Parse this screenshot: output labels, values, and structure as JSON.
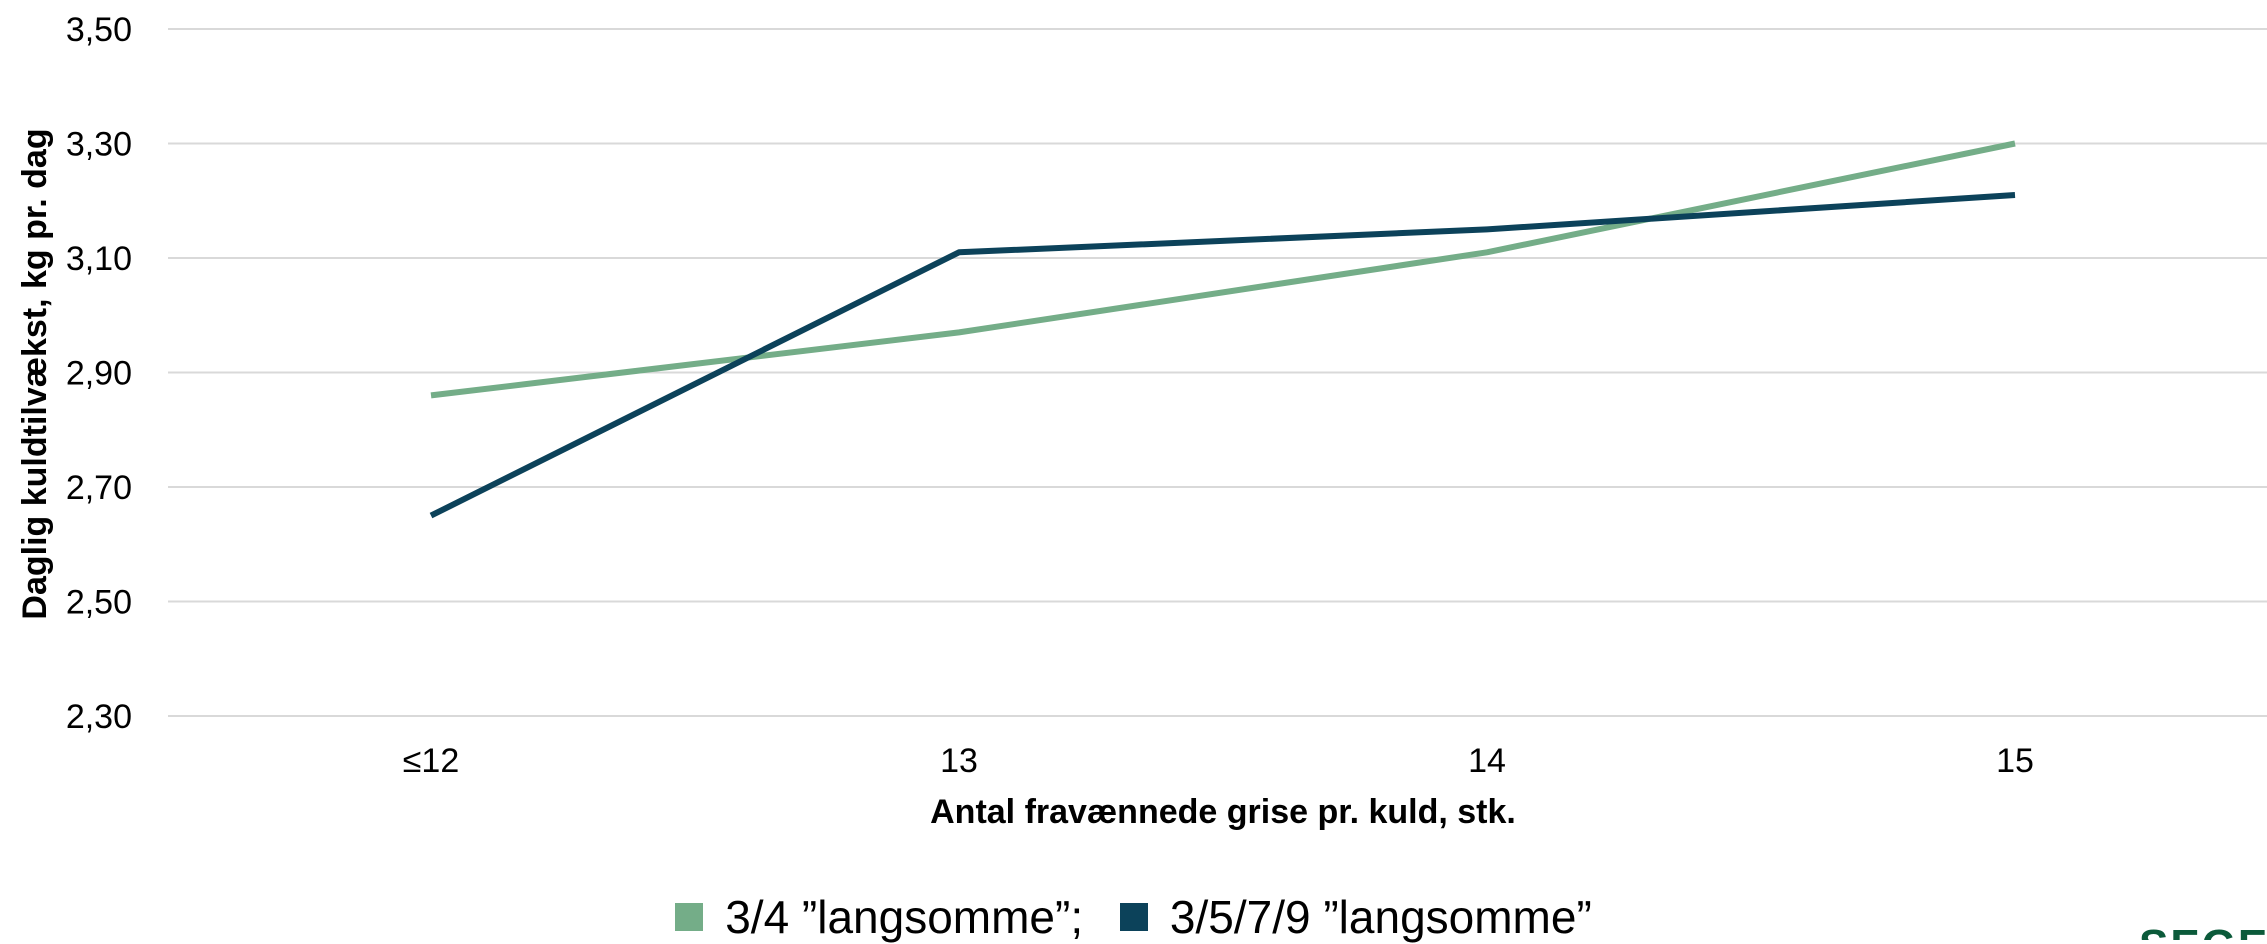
{
  "chart_data": {
    "type": "line",
    "categories": [
      "≤12",
      "13",
      "14",
      "15"
    ],
    "series": [
      {
        "name": "3/4 ”langsomme”;",
        "color": "#74ad88",
        "values": [
          2.86,
          2.97,
          3.11,
          3.3
        ]
      },
      {
        "name": "3/5/7/9 ”langsomme”",
        "color": "#0c425a",
        "values": [
          2.65,
          3.11,
          3.15,
          3.21
        ]
      }
    ],
    "ylim": [
      2.3,
      3.5
    ],
    "yticks": [
      "2,30",
      "2,50",
      "2,70",
      "2,90",
      "3,10",
      "3,30",
      "3,50"
    ],
    "ytick_values": [
      2.3,
      2.5,
      2.7,
      2.9,
      3.1,
      3.3,
      3.5
    ],
    "xlabel": "Antal fravænnede grise pr. kuld, stk.",
    "ylabel": "Daglig kuldtilvækst, kg pr. dag",
    "grid": true,
    "legend": "bottom-center",
    "gridline_color": "#d9d9d9"
  },
  "logo_text": "SEGES"
}
